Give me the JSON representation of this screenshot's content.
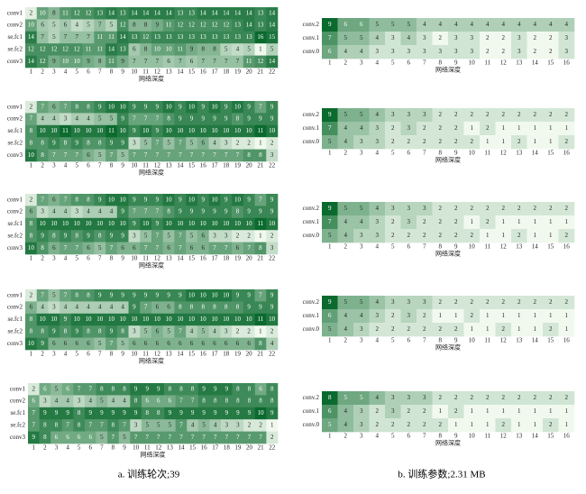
{
  "chart_data": [
    {
      "type": "heatmap",
      "xlabel": "网络深度",
      "colors": [
        "#f1f9ee",
        "#0b6a2e"
      ],
      "rows": [
        "conv1",
        "conv2",
        "se.fc1",
        "se.fc2",
        "conv3"
      ],
      "categories": [
        1,
        2,
        3,
        4,
        5,
        6,
        7,
        8,
        9,
        10,
        11,
        12,
        13,
        14,
        15,
        16,
        17,
        18,
        19,
        20,
        21,
        22
      ],
      "values": [
        [
          2,
          10,
          8,
          11,
          12,
          12,
          13,
          14,
          13,
          14,
          14,
          14,
          14,
          13,
          13,
          14,
          14,
          14,
          14,
          14,
          13,
          14
        ],
        [
          10,
          6,
          5,
          6,
          4,
          5,
          7,
          5,
          12,
          8,
          8,
          9,
          11,
          12,
          12,
          12,
          12,
          12,
          13,
          14,
          13,
          14
        ],
        [
          14,
          7,
          5,
          7,
          7,
          7,
          11,
          11,
          14,
          13,
          12,
          13,
          13,
          13,
          13,
          13,
          13,
          13,
          13,
          13,
          16,
          15
        ],
        [
          12,
          12,
          12,
          12,
          12,
          11,
          11,
          14,
          13,
          6,
          8,
          10,
          10,
          11,
          9,
          8,
          8,
          5,
          4,
          5,
          1,
          5
        ],
        [
          14,
          12,
          9,
          10,
          10,
          9,
          8,
          11,
          9,
          7,
          7,
          7,
          6,
          7,
          6,
          7,
          7,
          7,
          7,
          11,
          12,
          14
        ]
      ]
    },
    {
      "type": "heatmap",
      "xlabel": "网络深度",
      "colors": [
        "#f1f9ee",
        "#0b6a2e"
      ],
      "rows": [
        "conv.2",
        "conv.1",
        "conv.0"
      ],
      "categories": [
        1,
        2,
        3,
        4,
        5,
        6,
        7,
        8,
        9,
        10,
        11,
        12,
        13,
        14,
        15,
        16
      ],
      "values": [
        [
          9,
          6,
          6,
          5,
          5,
          5,
          4,
          4,
          4,
          4,
          4,
          4,
          4,
          4,
          4,
          4
        ],
        [
          7,
          5,
          5,
          4,
          3,
          4,
          3,
          2,
          3,
          3,
          2,
          2,
          3,
          2,
          2,
          3
        ],
        [
          6,
          4,
          4,
          3,
          3,
          3,
          3,
          3,
          3,
          3,
          2,
          2,
          3,
          2,
          2,
          3
        ]
      ]
    },
    {
      "type": "heatmap",
      "xlabel": "网络深度",
      "colors": [
        "#f1f9ee",
        "#0b6a2e"
      ],
      "rows": [
        "conv1",
        "conv2",
        "se.fc1",
        "se.fc2",
        "conv3"
      ],
      "categories": [
        1,
        2,
        3,
        4,
        5,
        6,
        7,
        8,
        9,
        10,
        11,
        12,
        13,
        14,
        15,
        16,
        17,
        18,
        19,
        20,
        21,
        22
      ],
      "values": [
        [
          2,
          7,
          6,
          7,
          8,
          8,
          9,
          10,
          10,
          9,
          9,
          9,
          10,
          9,
          10,
          9,
          10,
          9,
          10,
          9,
          7,
          9
        ],
        [
          7,
          4,
          4,
          3,
          4,
          4,
          5,
          5,
          9,
          7,
          7,
          7,
          8,
          9,
          9,
          9,
          9,
          9,
          8,
          9,
          9,
          9
        ],
        [
          8,
          10,
          10,
          11,
          10,
          10,
          10,
          11,
          10,
          9,
          10,
          9,
          10,
          10,
          10,
          10,
          10,
          10,
          10,
          10,
          11,
          10
        ],
        [
          8,
          8,
          9,
          8,
          9,
          8,
          8,
          9,
          9,
          3,
          5,
          7,
          5,
          7,
          5,
          6,
          4,
          3,
          2,
          2,
          1,
          2
        ],
        [
          10,
          8,
          7,
          7,
          7,
          6,
          5,
          7,
          5,
          7,
          7,
          7,
          7,
          7,
          7,
          7,
          7,
          7,
          7,
          8,
          8,
          3
        ]
      ]
    },
    {
      "type": "heatmap",
      "xlabel": "网络深度",
      "colors": [
        "#f1f9ee",
        "#0b6a2e"
      ],
      "rows": [
        "conv.2",
        "conv.1",
        "conv.0"
      ],
      "categories": [
        1,
        2,
        3,
        4,
        5,
        6,
        7,
        8,
        9,
        10,
        11,
        12,
        13,
        14,
        15,
        16
      ],
      "values": [
        [
          9,
          5,
          5,
          4,
          3,
          3,
          3,
          2,
          2,
          2,
          2,
          2,
          2,
          2,
          2,
          2
        ],
        [
          7,
          4,
          4,
          3,
          2,
          3,
          2,
          2,
          2,
          1,
          2,
          1,
          1,
          1,
          1,
          1
        ],
        [
          5,
          4,
          3,
          3,
          2,
          2,
          2,
          2,
          2,
          2,
          1,
          1,
          2,
          1,
          1,
          2
        ]
      ]
    },
    {
      "type": "heatmap",
      "xlabel": "网络深度",
      "colors": [
        "#f1f9ee",
        "#0b6a2e"
      ],
      "rows": [
        "conv1",
        "conv2",
        "se.fc1",
        "se.fc2",
        "conv3"
      ],
      "categories": [
        1,
        2,
        3,
        4,
        5,
        6,
        7,
        8,
        9,
        10,
        11,
        12,
        13,
        14,
        15,
        16,
        17,
        18,
        19,
        20,
        21,
        22
      ],
      "values": [
        [
          2,
          7,
          6,
          7,
          8,
          8,
          9,
          10,
          10,
          9,
          9,
          9,
          10,
          9,
          10,
          9,
          10,
          9,
          10,
          9,
          7,
          9
        ],
        [
          6,
          3,
          4,
          4,
          3,
          4,
          4,
          4,
          9,
          7,
          7,
          7,
          8,
          9,
          9,
          9,
          9,
          9,
          8,
          9,
          9,
          9
        ],
        [
          8,
          10,
          10,
          10,
          10,
          10,
          10,
          10,
          10,
          9,
          10,
          9,
          10,
          10,
          10,
          10,
          10,
          10,
          10,
          10,
          11,
          10
        ],
        [
          8,
          9,
          8,
          9,
          8,
          9,
          8,
          9,
          9,
          3,
          5,
          7,
          5,
          7,
          5,
          6,
          3,
          3,
          2,
          2,
          1,
          2
        ],
        [
          10,
          8,
          6,
          7,
          7,
          6,
          5,
          7,
          6,
          6,
          7,
          7,
          6,
          7,
          6,
          6,
          7,
          7,
          6,
          7,
          8,
          3
        ]
      ]
    },
    {
      "type": "heatmap",
      "xlabel": "网络深度",
      "colors": [
        "#f1f9ee",
        "#0b6a2e"
      ],
      "rows": [
        "conv.2",
        "conv.1",
        "conv.0"
      ],
      "categories": [
        1,
        2,
        3,
        4,
        5,
        6,
        7,
        8,
        9,
        10,
        11,
        12,
        13,
        14,
        15,
        16
      ],
      "values": [
        [
          9,
          5,
          5,
          4,
          3,
          3,
          3,
          2,
          2,
          2,
          2,
          2,
          2,
          2,
          2,
          2
        ],
        [
          7,
          4,
          4,
          3,
          2,
          3,
          2,
          2,
          2,
          1,
          2,
          1,
          1,
          1,
          1,
          1
        ],
        [
          5,
          4,
          3,
          3,
          2,
          2,
          2,
          2,
          2,
          2,
          1,
          1,
          2,
          1,
          1,
          2
        ]
      ]
    },
    {
      "type": "heatmap",
      "xlabel": "网络深度",
      "colors": [
        "#f1f9ee",
        "#0b6a2e"
      ],
      "rows": [
        "conv1",
        "conv2",
        "se.fc1",
        "se.fc2",
        "conv3"
      ],
      "categories": [
        1,
        2,
        3,
        4,
        5,
        6,
        7,
        8,
        9,
        10,
        11,
        12,
        13,
        14,
        15,
        16,
        17,
        18,
        19,
        20,
        21,
        22
      ],
      "values": [
        [
          2,
          7,
          5,
          7,
          8,
          8,
          9,
          9,
          9,
          9,
          9,
          9,
          9,
          9,
          10,
          10,
          10,
          10,
          9,
          9,
          7,
          9
        ],
        [
          6,
          4,
          3,
          4,
          4,
          4,
          4,
          4,
          4,
          9,
          7,
          6,
          6,
          8,
          8,
          8,
          8,
          8,
          8,
          9,
          9,
          9
        ],
        [
          8,
          10,
          10,
          9,
          10,
          10,
          10,
          10,
          10,
          10,
          10,
          10,
          10,
          10,
          10,
          10,
          10,
          10,
          10,
          10,
          11,
          10
        ],
        [
          8,
          8,
          9,
          8,
          9,
          8,
          8,
          9,
          8,
          3,
          5,
          6,
          5,
          7,
          4,
          5,
          4,
          3,
          2,
          2,
          1,
          2
        ],
        [
          10,
          9,
          6,
          6,
          6,
          6,
          5,
          7,
          5,
          6,
          6,
          6,
          6,
          6,
          6,
          6,
          6,
          6,
          6,
          6,
          8,
          4
        ]
      ]
    },
    {
      "type": "heatmap",
      "xlabel": "网络深度",
      "colors": [
        "#f1f9ee",
        "#0b6a2e"
      ],
      "rows": [
        "conv.2",
        "conv.1",
        "conv.0"
      ],
      "categories": [
        1,
        2,
        3,
        4,
        5,
        6,
        7,
        8,
        9,
        10,
        11,
        12,
        13,
        14,
        15,
        16
      ],
      "values": [
        [
          9,
          5,
          5,
          4,
          3,
          3,
          3,
          2,
          2,
          2,
          2,
          2,
          2,
          2,
          2,
          2
        ],
        [
          6,
          4,
          4,
          3,
          2,
          3,
          2,
          1,
          1,
          2,
          1,
          1,
          1,
          1,
          1,
          1
        ],
        [
          5,
          4,
          3,
          2,
          2,
          2,
          2,
          2,
          2,
          1,
          1,
          2,
          1,
          1,
          2,
          1
        ]
      ]
    },
    {
      "type": "heatmap",
      "xlabel": "网络深度",
      "colors": [
        "#f1f9ee",
        "#0b6a2e"
      ],
      "rows": [
        "conv1",
        "conv2",
        "se.fc1",
        "se.fc2",
        "conv3"
      ],
      "categories": [
        1,
        2,
        3,
        4,
        5,
        6,
        7,
        8,
        9,
        10,
        11,
        12,
        13,
        14,
        15,
        16,
        17,
        18,
        19,
        20,
        21,
        22
      ],
      "values": [
        [
          2,
          6,
          5,
          6,
          7,
          7,
          8,
          8,
          8,
          9,
          9,
          9,
          8,
          8,
          8,
          9,
          9,
          9,
          8,
          8,
          6,
          8
        ],
        [
          6,
          3,
          4,
          4,
          3,
          4,
          5,
          4,
          4,
          8,
          6,
          6,
          6,
          7,
          7,
          8,
          8,
          8,
          8,
          8,
          8,
          8
        ],
        [
          7,
          9,
          9,
          9,
          8,
          9,
          9,
          9,
          9,
          9,
          8,
          8,
          9,
          9,
          9,
          9,
          9,
          9,
          9,
          9,
          10,
          9
        ],
        [
          7,
          8,
          8,
          7,
          8,
          7,
          7,
          8,
          7,
          3,
          5,
          5,
          5,
          7,
          4,
          5,
          4,
          3,
          3,
          2,
          2,
          1
        ],
        [
          9,
          8,
          6,
          6,
          6,
          6,
          5,
          7,
          5,
          7,
          7,
          7,
          7,
          7,
          7,
          7,
          7,
          7,
          7,
          7,
          7,
          2
        ]
      ]
    },
    {
      "type": "heatmap",
      "xlabel": "网络深度",
      "colors": [
        "#f1f9ee",
        "#0b6a2e"
      ],
      "rows": [
        "conv.2",
        "conv.1",
        "conv.0"
      ],
      "categories": [
        1,
        2,
        3,
        4,
        5,
        6,
        7,
        8,
        9,
        10,
        11,
        12,
        13,
        14,
        15,
        16
      ],
      "values": [
        [
          8,
          5,
          5,
          4,
          3,
          3,
          3,
          2,
          2,
          2,
          2,
          2,
          2,
          2,
          2,
          2
        ],
        [
          6,
          4,
          3,
          2,
          3,
          2,
          2,
          1,
          2,
          1,
          1,
          1,
          1,
          1,
          1,
          1
        ],
        [
          5,
          4,
          3,
          2,
          2,
          2,
          2,
          2,
          1,
          1,
          1,
          2,
          1,
          1,
          2,
          1
        ]
      ]
    }
  ],
  "captions": [
    "a. 训练轮次;39",
    "b. 训练参数;2.31 MB"
  ]
}
